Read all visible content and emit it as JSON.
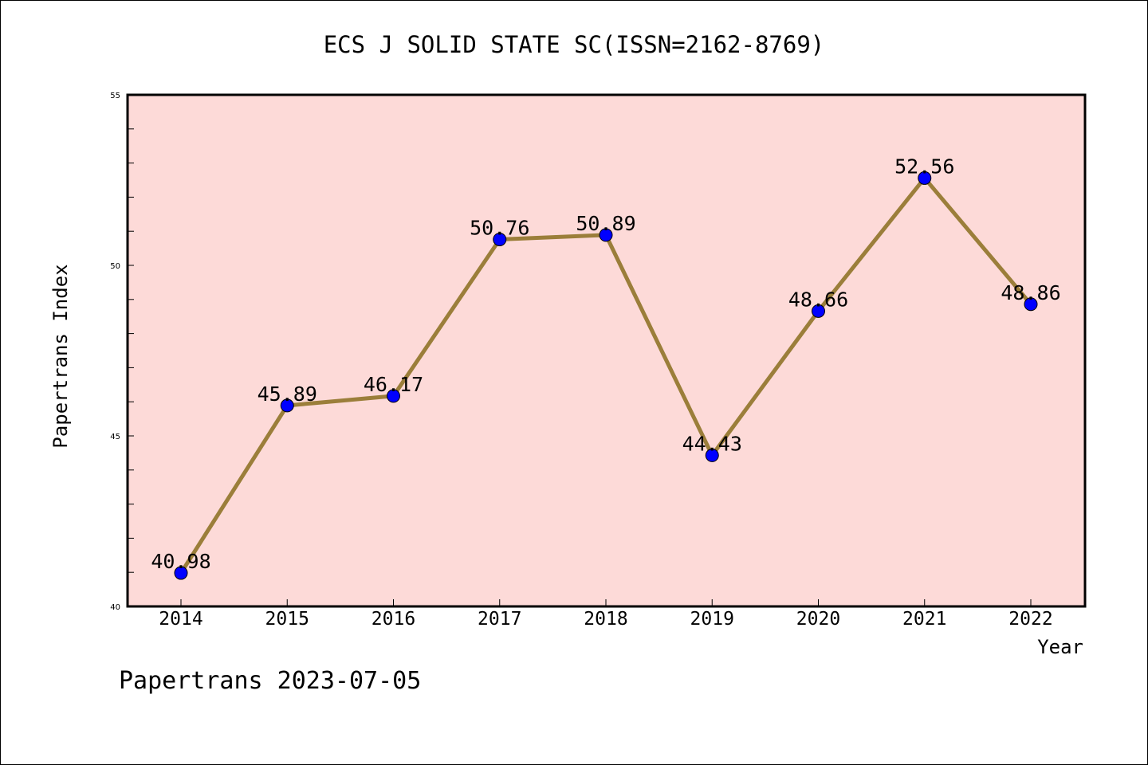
{
  "chart_data": {
    "type": "line",
    "title": "ECS J SOLID STATE SC(ISSN=2162-8769)",
    "xlabel": "Year",
    "ylabel": "Papertrans Index",
    "x": [
      "2014",
      "2015",
      "2016",
      "2017",
      "2018",
      "2019",
      "2020",
      "2021",
      "2022"
    ],
    "values": [
      40.98,
      45.89,
      46.17,
      50.76,
      50.89,
      44.43,
      48.66,
      52.56,
      48.86
    ],
    "data_labels": [
      "40.98",
      "45.89",
      "46.17",
      "50.76",
      "50.89",
      "44.43",
      "48.66",
      "52.56",
      "48.86"
    ],
    "ylim": [
      40,
      55
    ],
    "yticks": [
      "40",
      "45",
      "50",
      "55"
    ],
    "grid": false,
    "legend": "none",
    "colors": {
      "plot_background": "#fddad8",
      "line": "#9b7e3a",
      "marker": "#0000ff"
    }
  },
  "footer": {
    "credit": "Papertrans 2023-07-05"
  }
}
